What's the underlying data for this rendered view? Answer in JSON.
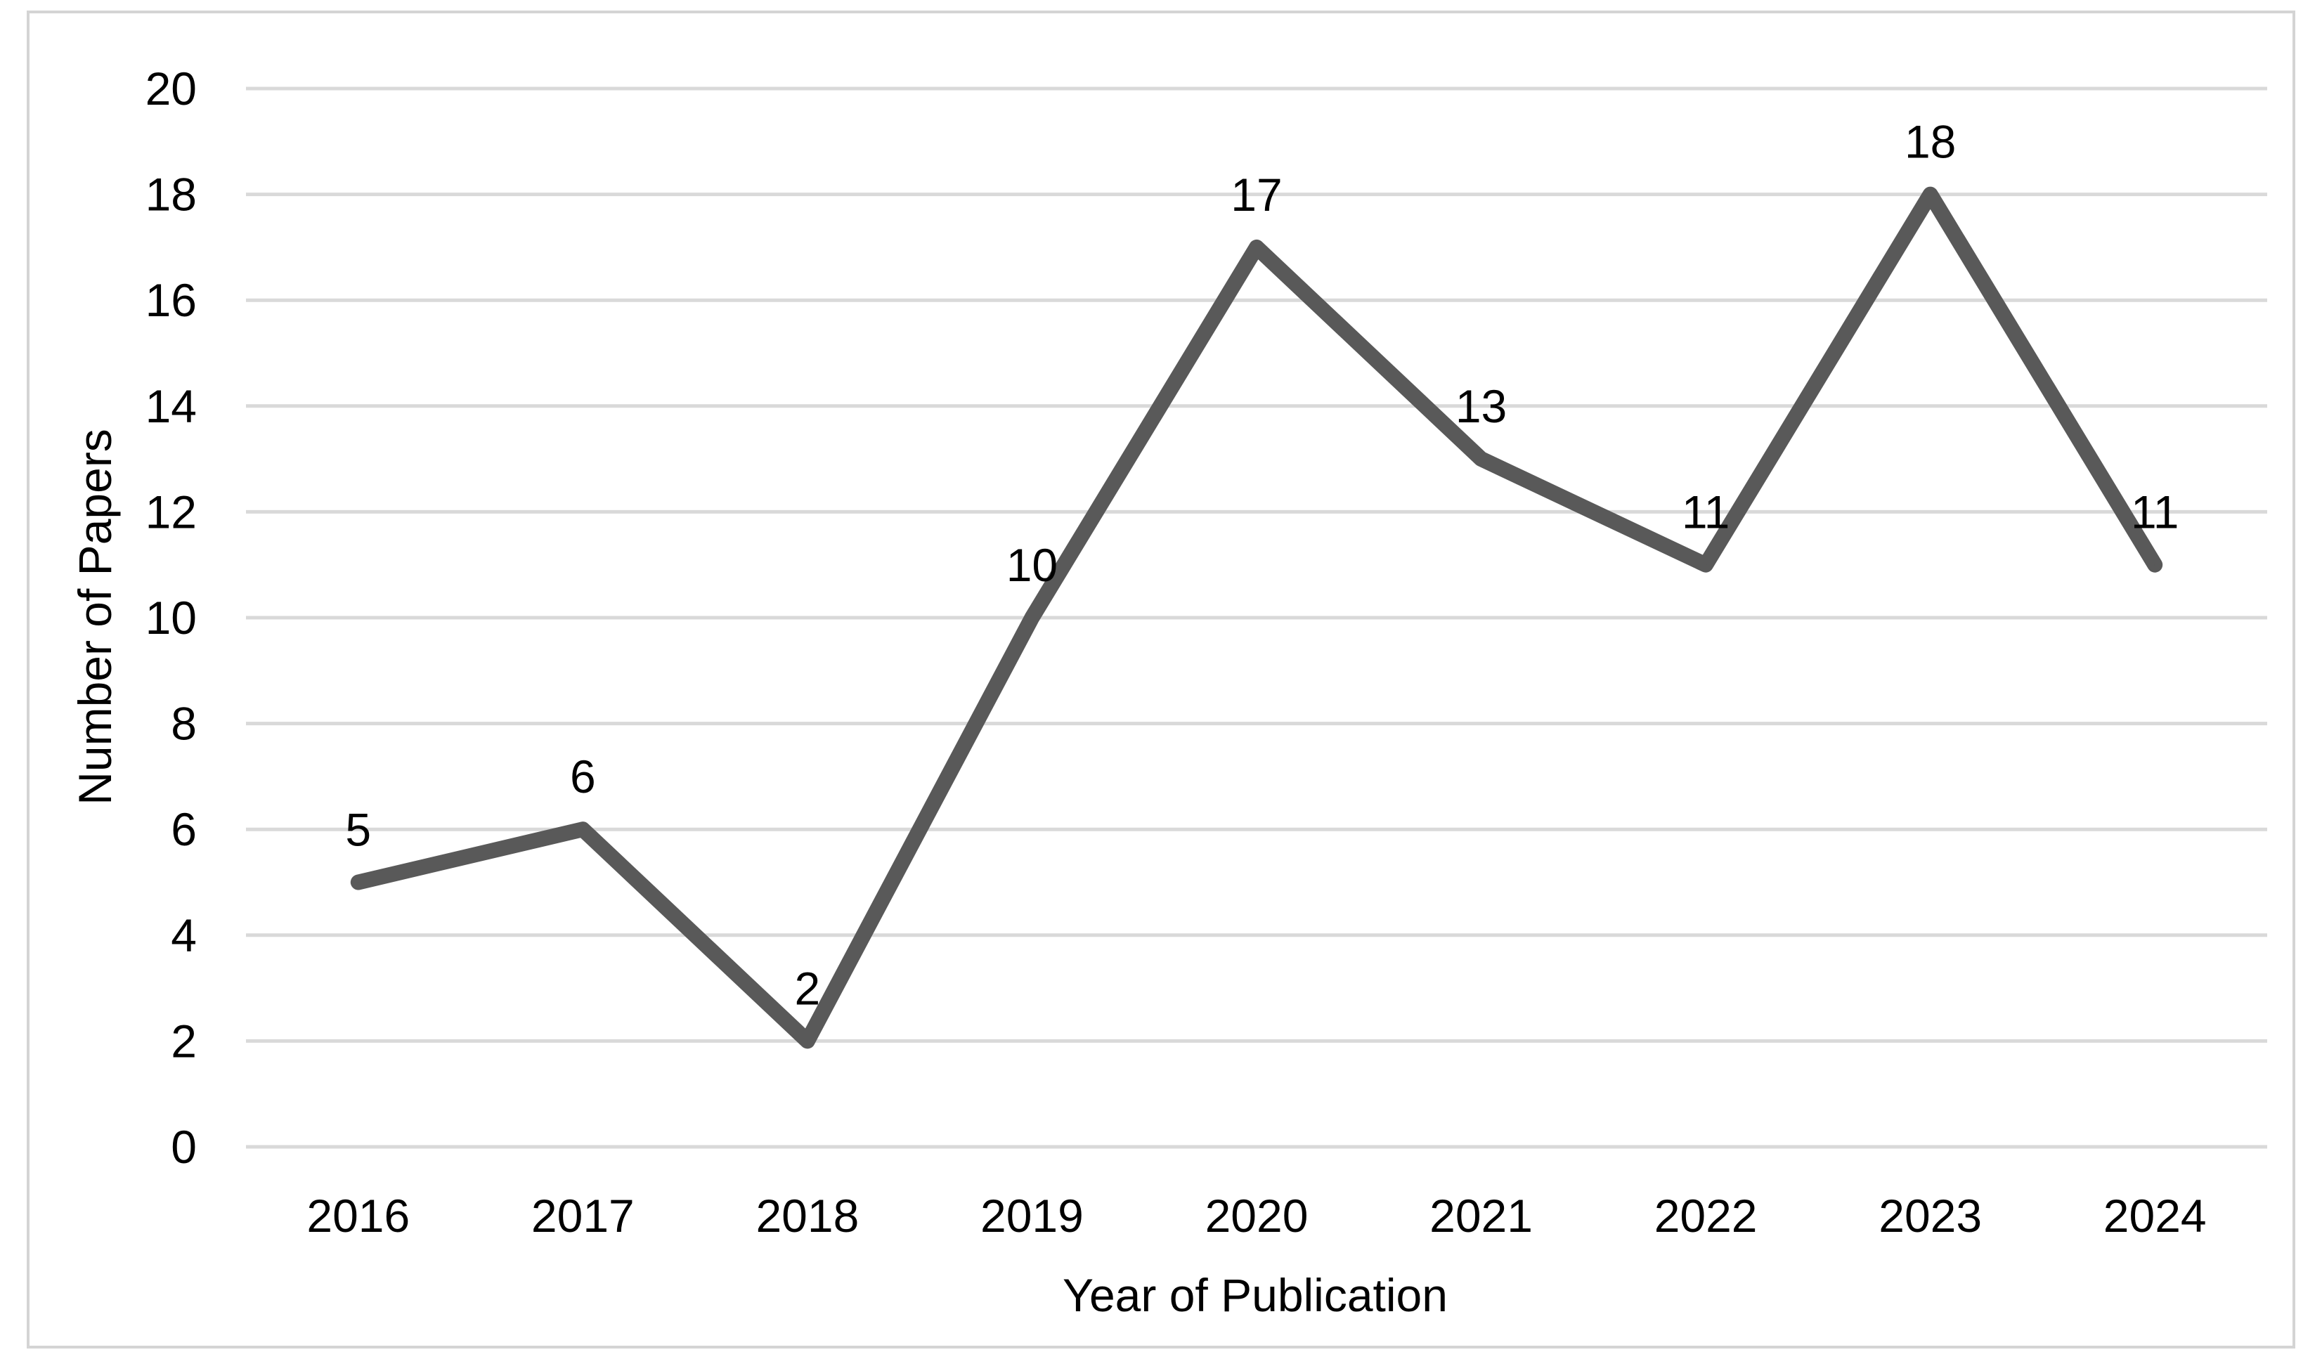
{
  "chart_data": {
    "type": "line",
    "title": "",
    "xlabel": "Year of Publication",
    "ylabel": "Number of Papers",
    "categories": [
      "2016",
      "2017",
      "2018",
      "2019",
      "2020",
      "2021",
      "2022",
      "2023",
      "2024"
    ],
    "series": [
      {
        "values": [
          5,
          6,
          2,
          10,
          17,
          13,
          11,
          18,
          11
        ]
      }
    ],
    "ylim": [
      0,
      20
    ],
    "yticks": [
      0,
      2,
      4,
      6,
      8,
      10,
      12,
      14,
      16,
      18,
      20
    ],
    "grid": "horizontal",
    "legend": "none",
    "data_labels": true,
    "colors": {
      "line": "#595959",
      "grid": "#d9d9d9",
      "frame": "#d4d4d4"
    }
  }
}
